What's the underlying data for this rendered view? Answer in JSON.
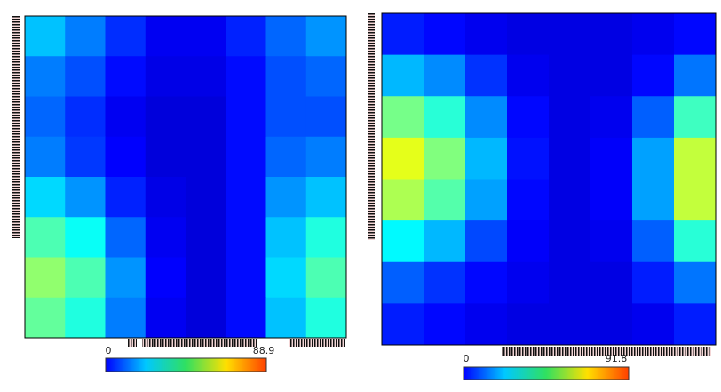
{
  "chart_data": [
    {
      "type": "heatmap",
      "colormap": "jet",
      "zlim": [
        0,
        88.9
      ],
      "zticks": [
        0,
        88.9
      ],
      "z": [
        [
          28,
          22,
          15,
          10,
          10,
          14,
          20,
          24
        ],
        [
          22,
          18,
          12,
          9,
          9,
          12,
          18,
          20
        ],
        [
          20,
          15,
          10,
          8,
          8,
          12,
          18,
          18
        ],
        [
          22,
          16,
          11,
          8,
          8,
          12,
          20,
          22
        ],
        [
          30,
          24,
          14,
          9,
          8,
          12,
          24,
          28
        ],
        [
          40,
          34,
          20,
          10,
          8,
          12,
          28,
          36
        ],
        [
          46,
          40,
          24,
          11,
          8,
          12,
          30,
          40
        ],
        [
          42,
          36,
          22,
          10,
          8,
          12,
          28,
          36
        ]
      ]
    },
    {
      "type": "heatmap",
      "colormap": "jet",
      "zlim": [
        0,
        91.8
      ],
      "zticks": [
        0,
        91.8
      ],
      "z": [
        [
          14,
          12,
          10,
          9,
          9,
          9,
          10,
          12
        ],
        [
          28,
          24,
          16,
          10,
          9,
          9,
          12,
          22
        ],
        [
          45,
          38,
          24,
          12,
          9,
          10,
          20,
          40
        ],
        [
          55,
          46,
          28,
          13,
          9,
          11,
          26,
          52
        ],
        [
          50,
          42,
          26,
          12,
          9,
          11,
          26,
          52
        ],
        [
          34,
          28,
          18,
          11,
          9,
          10,
          20,
          38
        ],
        [
          20,
          16,
          12,
          10,
          9,
          9,
          14,
          22
        ],
        [
          14,
          12,
          10,
          9,
          9,
          9,
          10,
          14
        ]
      ]
    }
  ]
}
